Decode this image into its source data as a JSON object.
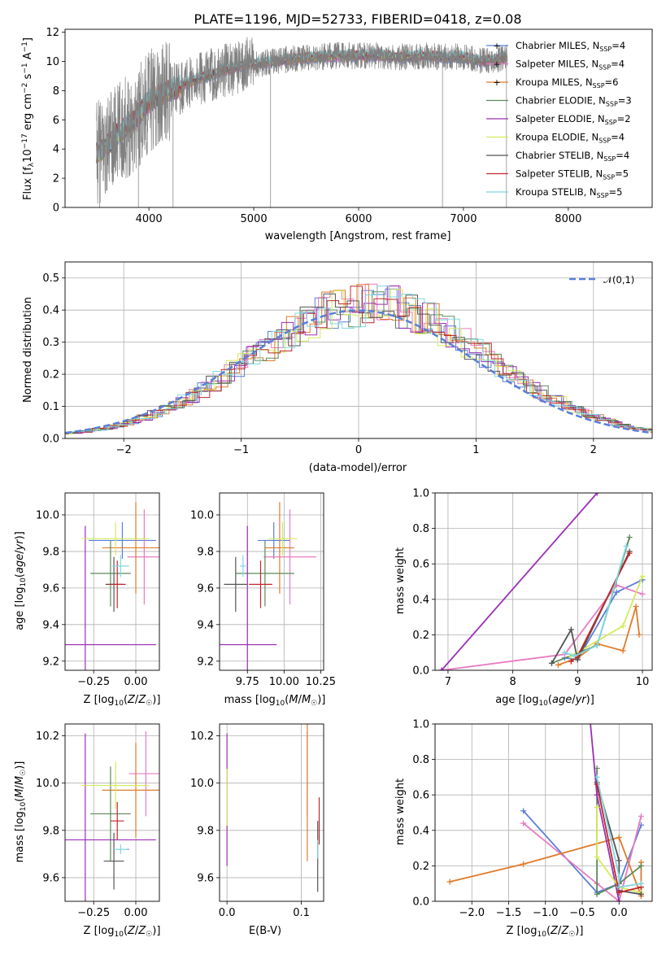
{
  "chart_data": [
    {
      "id": "spectrum",
      "type": "line",
      "title": "PLATE=1196, MJD=52733, FIBERID=0418, z=0.08",
      "xlabel": "wavelength [Angstrom, rest frame]",
      "ylabel": "Flux [f_λ10^-17 erg cm^-2 s^-1 A^-1]",
      "xlim": [
        3200,
        8800
      ],
      "ylim": [
        0,
        12.2
      ],
      "xticks": [
        4000,
        5000,
        6000,
        7000,
        8000
      ],
      "yticks": [
        0,
        2,
        4,
        6,
        8,
        10,
        12
      ],
      "legend_position": "right",
      "series": [
        {
          "name": "Chabrier MILES, N_SSP=4",
          "color": "#5a7fd6",
          "marker": true
        },
        {
          "name": "Salpeter MILES, N_SSP=4",
          "color": "#e87bc0",
          "marker": true
        },
        {
          "name": "Kroupa MILES, N_SSP=6",
          "color": "#e07b2a",
          "marker": true
        },
        {
          "name": "Chabrier ELODIE, N_SSP=3",
          "color": "#5b8a5b",
          "marker": false
        },
        {
          "name": "Salpeter ELODIE, N_SSP=2",
          "color": "#9b30b5",
          "marker": false
        },
        {
          "name": "Kroupa ELODIE, N_SSP=4",
          "color": "#d4ea5a",
          "marker": false
        },
        {
          "name": "Chabrier STELIB, N_SSP=4",
          "color": "#555555",
          "marker": false
        },
        {
          "name": "Salpeter STELIB, N_SSP=5",
          "color": "#c0282d",
          "marker": false
        },
        {
          "name": "Kroupa STELIB, N_SSP=5",
          "color": "#7fd8e0",
          "marker": false
        }
      ],
      "data_color": "#808080",
      "continuum": [
        [
          3500,
          3.7
        ],
        [
          3600,
          4.2
        ],
        [
          3700,
          5.0
        ],
        [
          3800,
          5.6
        ],
        [
          3900,
          6.3
        ],
        [
          4000,
          7.3
        ],
        [
          4100,
          7.6
        ],
        [
          4200,
          8.0
        ],
        [
          4300,
          8.2
        ],
        [
          4400,
          8.6
        ],
        [
          4500,
          8.9
        ],
        [
          4600,
          9.1
        ],
        [
          4700,
          9.4
        ],
        [
          4800,
          9.5
        ],
        [
          4900,
          9.8
        ],
        [
          5000,
          9.8
        ],
        [
          5200,
          10.0
        ],
        [
          5400,
          10.2
        ],
        [
          5600,
          10.3
        ],
        [
          5800,
          10.4
        ],
        [
          6000,
          10.4
        ],
        [
          6200,
          10.4
        ],
        [
          6400,
          10.3
        ],
        [
          6600,
          10.4
        ],
        [
          6800,
          10.3
        ],
        [
          7000,
          10.3
        ],
        [
          7200,
          10.0
        ],
        [
          7420,
          10.3
        ]
      ]
    },
    {
      "id": "residuals",
      "type": "histogram",
      "xlabel": "(data-model)/error",
      "ylabel": "Normed distribution",
      "xlim": [
        -2.5,
        2.5
      ],
      "ylim": [
        0,
        0.55
      ],
      "xticks": [
        -2,
        -1,
        0,
        1,
        2
      ],
      "yticks": [
        0.0,
        0.1,
        0.2,
        0.3,
        0.4,
        0.5
      ],
      "legend": "𝒩(0,1)",
      "gaussian_color": "#5a7fd6"
    },
    {
      "id": "age_vs_Z",
      "type": "errorbar",
      "xlabel": "Z [log10(Z/Z☉)]",
      "ylabel": "age [log10(age/yr)]",
      "xlim": [
        -0.42,
        0.14
      ],
      "ylim": [
        9.15,
        10.12
      ],
      "xticks": [
        -0.25,
        0.0
      ],
      "yticks": [
        9.2,
        9.4,
        9.6,
        9.8,
        10.0
      ],
      "points": [
        {
          "x": -0.08,
          "xerr": 0.2,
          "y": 9.86,
          "yerr": 0.1,
          "color": "#5a7fd6"
        },
        {
          "x": 0.05,
          "xerr": 0.1,
          "y": 9.77,
          "yerr": 0.26,
          "color": "#e87bc0"
        },
        {
          "x": 0.0,
          "xerr": 0.2,
          "y": 9.82,
          "yerr": 0.25,
          "color": "#e07b2a"
        },
        {
          "x": -0.15,
          "xerr": 0.12,
          "y": 9.68,
          "yerr": 0.18,
          "color": "#5b8a5b"
        },
        {
          "x": -0.3,
          "xerr": 0.42,
          "y": 9.29,
          "yerr": 0.65,
          "color": "#9b30b5"
        },
        {
          "x": -0.12,
          "xerr": 0.2,
          "y": 9.87,
          "yerr": 0.09,
          "color": "#d4ea5a"
        },
        {
          "x": -0.13,
          "xerr": 0.05,
          "y": 9.62,
          "yerr": 0.15,
          "color": "#555555"
        },
        {
          "x": -0.11,
          "xerr": 0.05,
          "y": 9.62,
          "yerr": 0.13,
          "color": "#c0282d"
        },
        {
          "x": -0.09,
          "xerr": 0.05,
          "y": 9.72,
          "yerr": 0.06,
          "color": "#7fd8e0"
        }
      ]
    },
    {
      "id": "age_vs_mass",
      "type": "errorbar",
      "xlabel": "mass [log10(M/M☉)]",
      "xlim": [
        9.56,
        10.27
      ],
      "ylim": [
        9.15,
        10.12
      ],
      "xticks": [
        9.75,
        10.0,
        10.25
      ],
      "xticklabels": [
        "9.75",
        "10.00",
        "10.25"
      ],
      "yticks": [
        9.2,
        9.4,
        9.6,
        9.8,
        10.0
      ],
      "points": [
        {
          "x": 9.93,
          "xerr": 0.11,
          "y": 9.86,
          "yerr": 0.1,
          "color": "#5a7fd6"
        },
        {
          "x": 10.04,
          "xerr": 0.18,
          "y": 9.77,
          "yerr": 0.26,
          "color": "#e87bc0"
        },
        {
          "x": 9.97,
          "xerr": 0.1,
          "y": 9.82,
          "yerr": 0.25,
          "color": "#e07b2a"
        },
        {
          "x": 9.87,
          "xerr": 0.2,
          "y": 9.68,
          "yerr": 0.18,
          "color": "#5b8a5b"
        },
        {
          "x": 9.75,
          "xerr": 0.2,
          "y": 9.29,
          "yerr": 0.65,
          "color": "#9b30b5"
        },
        {
          "x": 9.99,
          "xerr": 0.1,
          "y": 9.87,
          "yerr": 0.09,
          "color": "#d4ea5a"
        },
        {
          "x": 9.67,
          "xerr": 0.08,
          "y": 9.62,
          "yerr": 0.15,
          "color": "#555555"
        },
        {
          "x": 9.84,
          "xerr": 0.08,
          "y": 9.62,
          "yerr": 0.13,
          "color": "#c0282d"
        },
        {
          "x": 9.72,
          "xerr": 0.02,
          "y": 9.72,
          "yerr": 0.06,
          "color": "#7fd8e0"
        }
      ]
    },
    {
      "id": "weight_vs_age",
      "type": "line",
      "xlabel": "age [log10(age/yr)]",
      "ylabel": "mass weight",
      "xlim": [
        6.8,
        10.15
      ],
      "ylim": [
        0,
        1
      ],
      "xticks": [
        7,
        8,
        9,
        10
      ],
      "yticks": [
        0.0,
        0.2,
        0.4,
        0.6,
        0.8,
        1.0
      ],
      "series": [
        {
          "color": "#5a7fd6",
          "points": [
            [
              8.8,
              0.07
            ],
            [
              9.0,
              0.06
            ],
            [
              9.6,
              0.44
            ],
            [
              10.0,
              0.51
            ]
          ]
        },
        {
          "color": "#e87bc0",
          "points": [
            [
              6.9,
              0.0
            ],
            [
              8.8,
              0.09
            ],
            [
              9.6,
              0.48
            ],
            [
              10.0,
              0.43
            ]
          ]
        },
        {
          "color": "#e07b2a",
          "points": [
            [
              8.7,
              0.03
            ],
            [
              9.0,
              0.07
            ],
            [
              9.3,
              0.15
            ],
            [
              9.7,
              0.11
            ],
            [
              9.9,
              0.36
            ],
            [
              9.95,
              0.2
            ]
          ]
        },
        {
          "color": "#5b8a5b",
          "points": [
            [
              8.6,
              0.04
            ],
            [
              9.3,
              0.14
            ],
            [
              9.8,
              0.75
            ]
          ]
        },
        {
          "color": "#9b30b5",
          "points": [
            [
              6.9,
              0.0
            ],
            [
              9.3,
              1.0
            ]
          ]
        },
        {
          "color": "#d4ea5a",
          "points": [
            [
              8.9,
              0.08
            ],
            [
              9.7,
              0.25
            ],
            [
              10.0,
              0.53
            ]
          ]
        },
        {
          "color": "#555555",
          "points": [
            [
              8.6,
              0.04
            ],
            [
              8.9,
              0.23
            ],
            [
              9.0,
              0.06
            ],
            [
              9.8,
              0.67
            ]
          ]
        },
        {
          "color": "#c0282d",
          "points": [
            [
              8.9,
              0.05
            ],
            [
              9.0,
              0.08
            ],
            [
              9.8,
              0.66
            ]
          ]
        },
        {
          "color": "#7fd8e0",
          "points": [
            [
              8.8,
              0.1
            ],
            [
              8.95,
              0.08
            ],
            [
              9.3,
              0.14
            ],
            [
              9.75,
              0.7
            ]
          ]
        }
      ]
    },
    {
      "id": "mass_vs_Z",
      "type": "errorbar",
      "xlabel": "Z [log10(Z/Z☉)]",
      "ylabel": "mass [log10(M/M☉)]",
      "xlim": [
        -0.42,
        0.14
      ],
      "ylim": [
        9.5,
        10.25
      ],
      "xticks": [
        -0.25,
        0.0
      ],
      "yticks": [
        9.6,
        9.8,
        10.0,
        10.2
      ],
      "points": [
        {
          "x": -0.08,
          "xerr": 0.04,
          "y": 9.72,
          "yerr": 0.0,
          "color": "#5a7fd6"
        },
        {
          "x": 0.06,
          "xerr": 0.1,
          "y": 10.04,
          "yerr": 0.18,
          "color": "#e87bc0"
        },
        {
          "x": 0.0,
          "xerr": 0.2,
          "y": 9.97,
          "yerr": 0.2,
          "color": "#e07b2a"
        },
        {
          "x": -0.15,
          "xerr": 0.12,
          "y": 9.87,
          "yerr": 0.2,
          "color": "#5b8a5b"
        },
        {
          "x": -0.3,
          "xerr": 0.42,
          "y": 9.76,
          "yerr": 0.45,
          "color": "#9b30b5"
        },
        {
          "x": -0.12,
          "xerr": 0.2,
          "y": 9.99,
          "yerr": 0.1,
          "color": "#d4ea5a"
        },
        {
          "x": -0.13,
          "xerr": 0.06,
          "y": 9.67,
          "yerr": 0.12,
          "color": "#555555"
        },
        {
          "x": -0.11,
          "xerr": 0.04,
          "y": 9.84,
          "yerr": 0.08,
          "color": "#c0282d"
        },
        {
          "x": -0.09,
          "xerr": 0.04,
          "y": 9.72,
          "yerr": 0.02,
          "color": "#7fd8e0"
        }
      ]
    },
    {
      "id": "mass_vs_ebv",
      "type": "errorbar",
      "xlabel": "E(B-V)",
      "xlim": [
        -0.01,
        0.13
      ],
      "ylim": [
        9.5,
        10.25
      ],
      "xticks": [
        0.0,
        0.1
      ],
      "yticks": [
        9.6,
        9.8,
        10.0,
        10.2
      ],
      "points": [
        {
          "x": 0.0,
          "y": 9.93,
          "yerr": 0.28,
          "color": "#9b30b5"
        },
        {
          "x": 0.0,
          "y": 9.94,
          "yerr": 0.12,
          "color": "#d4ea5a"
        },
        {
          "x": 0.108,
          "y": 10.04,
          "yerr": 0.18,
          "color": "#e87bc0"
        },
        {
          "x": 0.108,
          "y": 9.97,
          "yerr": 0.3,
          "color": "#e07b2a"
        },
        {
          "x": 0.122,
          "y": 9.69,
          "yerr": 0.15,
          "color": "#555555"
        },
        {
          "x": 0.124,
          "y": 9.84,
          "yerr": 0.1,
          "color": "#c0282d"
        },
        {
          "x": 0.122,
          "y": 9.72,
          "yerr": 0.04,
          "color": "#7fd8e0"
        }
      ]
    },
    {
      "id": "weight_vs_Z",
      "type": "line",
      "xlabel": "Z [log10(Z/Z☉)]",
      "ylabel": "mass weight",
      "xlim": [
        -2.5,
        0.45
      ],
      "ylim": [
        0,
        1
      ],
      "xticks": [
        -2.0,
        -1.5,
        -1.0,
        -0.5,
        0.0
      ],
      "yticks": [
        0.0,
        0.2,
        0.4,
        0.6,
        0.8,
        1.0
      ],
      "series": [
        {
          "color": "#5a7fd6",
          "points": [
            [
              -1.3,
              0.51
            ],
            [
              -0.3,
              0.05
            ],
            [
              0.0,
              0.1
            ],
            [
              0.3,
              0.43
            ]
          ]
        },
        {
          "color": "#e87bc0",
          "points": [
            [
              -1.3,
              0.44
            ],
            [
              -0.3,
              0.1
            ],
            [
              0.0,
              0.0
            ],
            [
              0.3,
              0.48
            ]
          ]
        },
        {
          "color": "#e07b2a",
          "points": [
            [
              -2.3,
              0.11
            ],
            [
              -1.3,
              0.21
            ],
            [
              0.0,
              0.36
            ],
            [
              0.3,
              0.03
            ],
            [
              0.3,
              0.22
            ]
          ]
        },
        {
          "color": "#5b8a5b",
          "points": [
            [
              -0.3,
              0.75
            ],
            [
              -0.3,
              0.04
            ],
            [
              0.0,
              0.1
            ],
            [
              0.3,
              0.2
            ]
          ]
        },
        {
          "color": "#9b30b5",
          "points": [
            [
              -0.4,
              1.05
            ],
            [
              -0.3,
              0.6
            ],
            [
              0.0,
              0.0
            ]
          ]
        },
        {
          "color": "#d4ea5a",
          "points": [
            [
              -0.3,
              0.53
            ],
            [
              -0.3,
              0.25
            ],
            [
              0.0,
              0.08
            ],
            [
              0.3,
              0.05
            ]
          ]
        },
        {
          "color": "#555555",
          "points": [
            [
              -0.3,
              0.67
            ],
            [
              0.0,
              0.23
            ],
            [
              0.0,
              0.06
            ],
            [
              0.3,
              0.04
            ]
          ]
        },
        {
          "color": "#c0282d",
          "points": [
            [
              -0.3,
              0.66
            ],
            [
              0.0,
              0.05
            ],
            [
              0.3,
              0.08
            ]
          ]
        },
        {
          "color": "#7fd8e0",
          "points": [
            [
              -0.3,
              0.7
            ],
            [
              0.0,
              0.14
            ],
            [
              0.0,
              0.08
            ],
            [
              0.3,
              0.1
            ]
          ]
        }
      ]
    }
  ]
}
